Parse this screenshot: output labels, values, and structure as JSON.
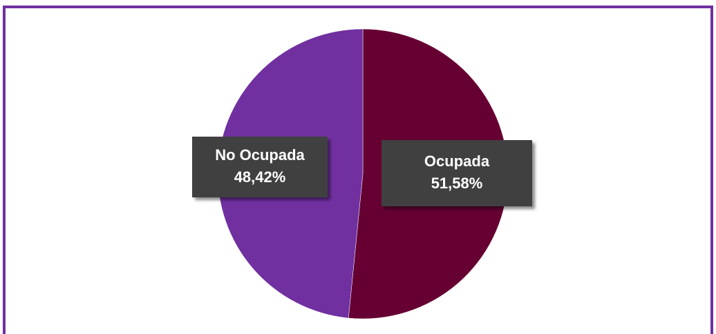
{
  "chart_data": {
    "type": "pie",
    "categories": [
      "Ocupada",
      "No Ocupada"
    ],
    "values": [
      51.58,
      48.42
    ],
    "value_labels": [
      "51,58%",
      "48,42%"
    ],
    "colors": [
      "#660033",
      "#7030a0"
    ]
  }
}
